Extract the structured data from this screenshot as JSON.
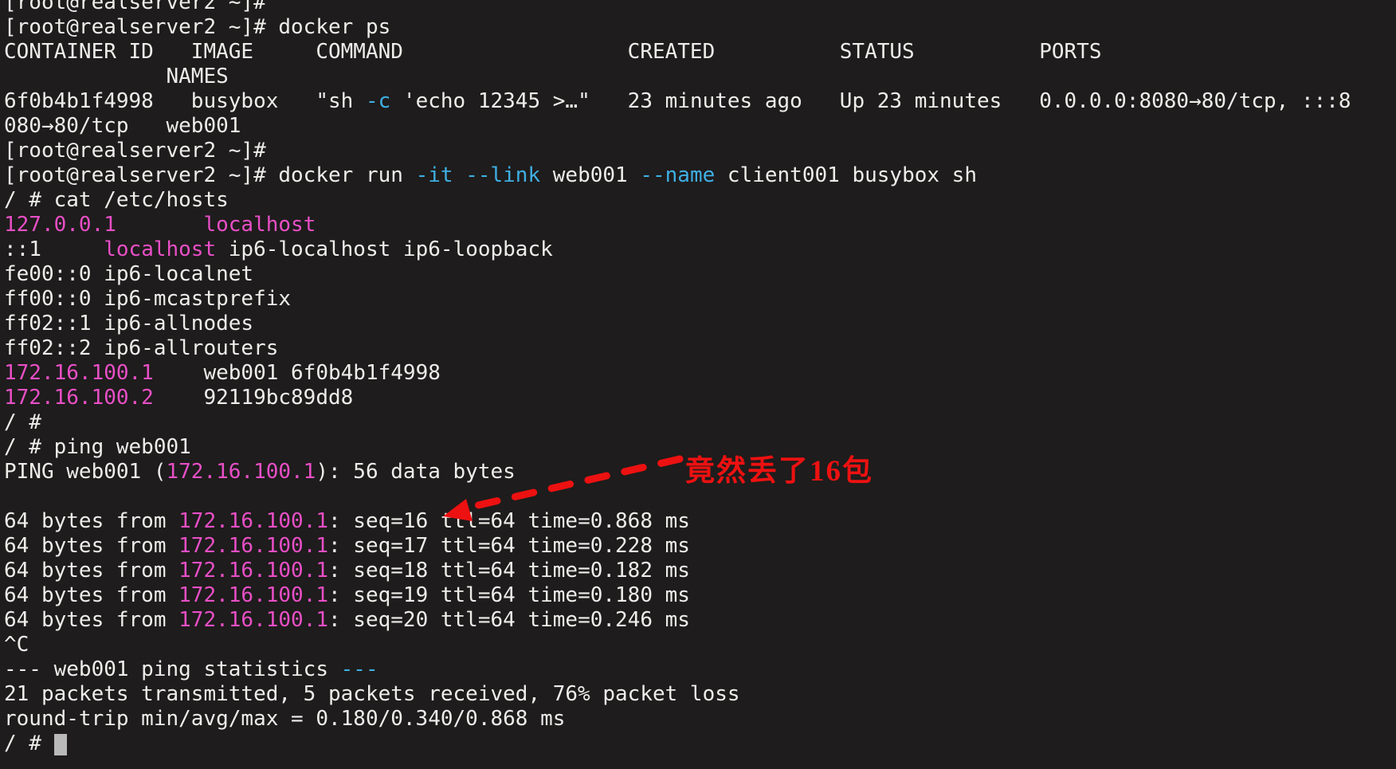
{
  "colors": {
    "bg": "#1e1c1c",
    "fg": "#efedea",
    "cyan": "#3fb0e4",
    "magenta": "#e84fc6",
    "red": "#ed1111",
    "cursor": "#b9b9b9"
  },
  "annotation": {
    "text": "竟然丢了16包"
  },
  "terminal": {
    "prompt_host": "[root@realserver2 ~]#",
    "container_prompt": "/ #",
    "lines": [
      [
        [
          "[root@realserver2 ~]#",
          "fg"
        ]
      ],
      [
        [
          "[root@realserver2 ~]# docker ps",
          "fg"
        ]
      ],
      [
        [
          "CONTAINER ID   IMAGE     COMMAND                  CREATED          STATUS          PORTS",
          "fg"
        ]
      ],
      [
        [
          "             NAMES",
          "fg"
        ]
      ],
      [
        [
          "6f0b4b1f4998   busybox   \"sh ",
          "fg"
        ],
        [
          "-c",
          "cyan"
        ],
        [
          " 'echo 12345 >…\"   23 minutes ago   Up 23 minutes   0.0.0.0:8080→80/tcp, :::8",
          "fg"
        ]
      ],
      [
        [
          "080→80/tcp   web001",
          "fg"
        ]
      ],
      [
        [
          "[root@realserver2 ~]#",
          "fg"
        ]
      ],
      [
        [
          "[root@realserver2 ~]# docker run ",
          "fg"
        ],
        [
          "-it",
          "cyan"
        ],
        [
          " ",
          "fg"
        ],
        [
          "--link",
          "cyan"
        ],
        [
          " web001 ",
          "fg"
        ],
        [
          "--name",
          "cyan"
        ],
        [
          " client001 busybox sh",
          "fg"
        ]
      ],
      [
        [
          "/ # cat /etc/hosts",
          "fg"
        ]
      ],
      [
        [
          "127.0.0.1",
          "magenta"
        ],
        [
          "       ",
          "fg"
        ],
        [
          "localhost",
          "magenta"
        ]
      ],
      [
        [
          "::1     ",
          "fg"
        ],
        [
          "localhost",
          "magenta"
        ],
        [
          " ip6-localhost ip6-loopback",
          "fg"
        ]
      ],
      [
        [
          "fe00::0 ip6-localnet",
          "fg"
        ]
      ],
      [
        [
          "ff00::0 ip6-mcastprefix",
          "fg"
        ]
      ],
      [
        [
          "ff02::1 ip6-allnodes",
          "fg"
        ]
      ],
      [
        [
          "ff02::2 ip6-allrouters",
          "fg"
        ]
      ],
      [
        [
          "172.16.100.1",
          "magenta"
        ],
        [
          "    web001 6f0b4b1f4998",
          "fg"
        ]
      ],
      [
        [
          "172.16.100.2",
          "magenta"
        ],
        [
          "    92119bc89dd8",
          "fg"
        ]
      ],
      [
        [
          "/ #",
          "fg"
        ]
      ],
      [
        [
          "/ # ping web001",
          "fg"
        ]
      ],
      [
        [
          "PING web001 (",
          "fg"
        ],
        [
          "172.16.100.1",
          "magenta"
        ],
        [
          "): 56 data bytes",
          "fg"
        ]
      ],
      [
        [
          "",
          "fg"
        ]
      ],
      [
        [
          "64 bytes from ",
          "fg"
        ],
        [
          "172.16.100.1",
          "magenta"
        ],
        [
          ": seq=16 ttl=64 time=0.868 ms",
          "fg"
        ]
      ],
      [
        [
          "64 bytes from ",
          "fg"
        ],
        [
          "172.16.100.1",
          "magenta"
        ],
        [
          ": seq=17 ttl=64 time=0.228 ms",
          "fg"
        ]
      ],
      [
        [
          "64 bytes from ",
          "fg"
        ],
        [
          "172.16.100.1",
          "magenta"
        ],
        [
          ": seq=18 ttl=64 time=0.182 ms",
          "fg"
        ]
      ],
      [
        [
          "64 bytes from ",
          "fg"
        ],
        [
          "172.16.100.1",
          "magenta"
        ],
        [
          ": seq=19 ttl=64 time=0.180 ms",
          "fg"
        ]
      ],
      [
        [
          "64 bytes from ",
          "fg"
        ],
        [
          "172.16.100.1",
          "magenta"
        ],
        [
          ": seq=20 ttl=64 time=0.246 ms",
          "fg"
        ]
      ],
      [
        [
          "^C",
          "fg"
        ]
      ],
      [
        [
          "--- web001 ping statistics ",
          "fg"
        ],
        [
          "---",
          "cyan"
        ]
      ],
      [
        [
          "21 packets transmitted, 5 packets received, 76% packet loss",
          "fg"
        ]
      ],
      [
        [
          "round-trip min/avg/max = 0.180/0.340/0.868 ms",
          "fg"
        ]
      ],
      [
        [
          "/ # ",
          "fg"
        ],
        [
          " ",
          "cursor"
        ]
      ]
    ]
  }
}
